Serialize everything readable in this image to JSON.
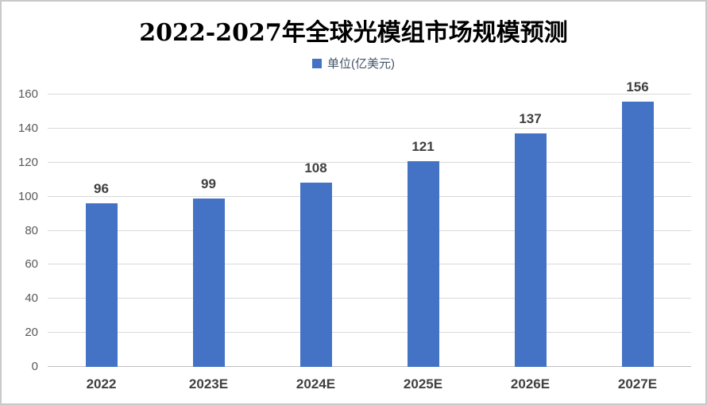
{
  "title": "2022-2027年全球光模组市场规模预测",
  "legend": {
    "label": "单位(亿美元)",
    "marker_color": "#4472C4"
  },
  "colors": {
    "bar": "#4472C4",
    "gridline": "#d9d9d9",
    "axis_line": "#bfbfbf",
    "y_axis_label": "#595959",
    "data_label": "#404040",
    "x_axis_label": "#404040",
    "legend_text": "#44546A",
    "title_text": "#000000",
    "canvas_border": "#c9c9c9"
  },
  "chart_data": {
    "type": "bar",
    "title": "2022-2027年全球光模组市场规模预测",
    "legend_entries": [
      "单位(亿美元)"
    ],
    "legend_position": "top",
    "categories": [
      "2022",
      "2023E",
      "2024E",
      "2025E",
      "2026E",
      "2027E"
    ],
    "values": [
      96,
      99,
      108,
      121,
      137,
      156
    ],
    "data_labels_shown": true,
    "xlabel": "",
    "ylabel": "",
    "ylim": [
      0,
      160
    ],
    "ytick_step": 20,
    "yticks": [
      0,
      20,
      40,
      60,
      80,
      100,
      120,
      140,
      160
    ],
    "grid": true
  }
}
